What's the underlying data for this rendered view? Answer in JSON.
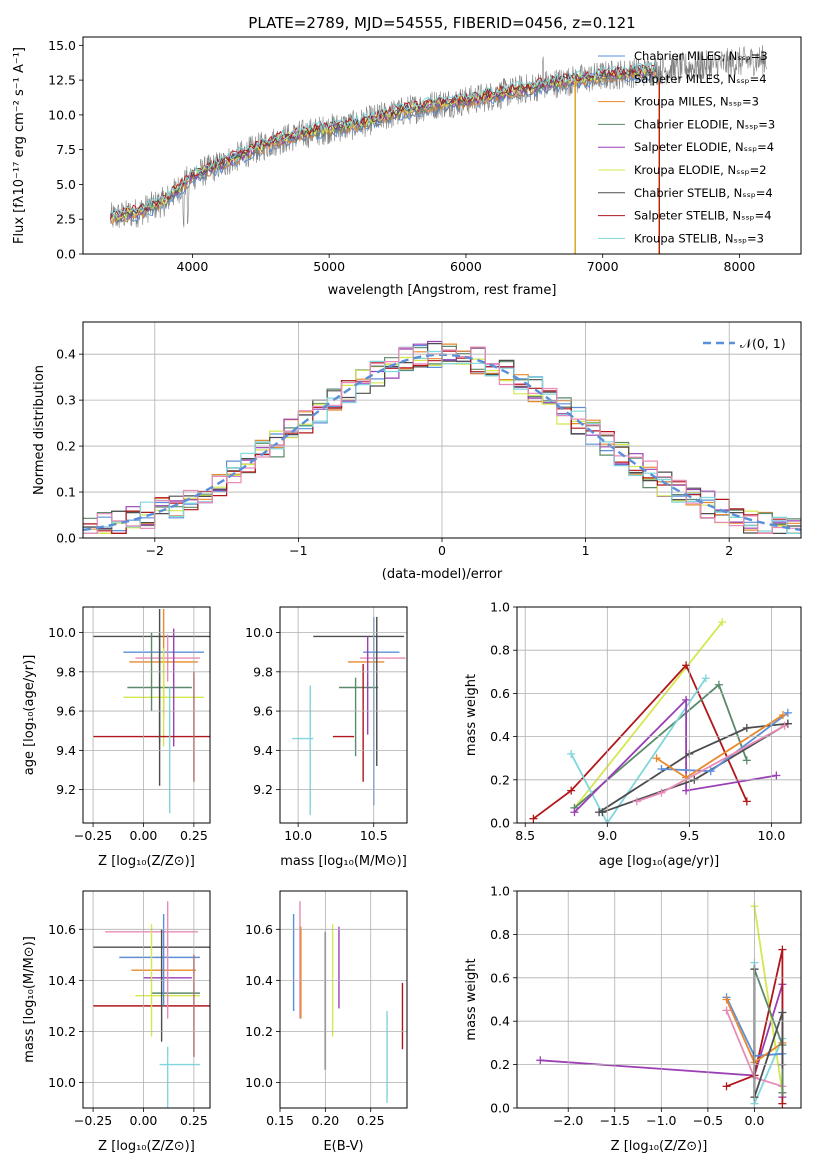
{
  "chart_data": [
    {
      "type": "line",
      "title": "PLATE=2789, MJD=54555, FIBERID=0456, z=0.121",
      "xlabel": "wavelength [Angstrom, rest frame]",
      "ylabel": "Flux [fλ10⁻¹⁷ erg cm⁻² s⁻¹ A⁻¹]",
      "xlim": [
        3200,
        8450
      ],
      "ylim": [
        0,
        15.6
      ],
      "xticks": [
        "4000",
        "5000",
        "6000",
        "7000",
        "8000"
      ],
      "yticks": [
        "0.0",
        "2.5",
        "5.0",
        "7.5",
        "10.0",
        "12.5",
        "15.0"
      ],
      "legend_placement": "top-right",
      "observed_color": "#808080",
      "continuum": {
        "x": [
          3400,
          3600,
          3800,
          4000,
          4200,
          4400,
          4600,
          4800,
          5000,
          5200,
          5400,
          5600,
          5800,
          6000,
          6200,
          6400,
          6600,
          6800,
          7000,
          7200
        ],
        "y": [
          2.6,
          3.0,
          3.8,
          5.6,
          6.4,
          7.3,
          8.1,
          8.6,
          9.0,
          9.3,
          9.9,
          10.4,
          10.8,
          11.0,
          11.4,
          11.8,
          12.2,
          12.5,
          12.8,
          13.0
        ]
      },
      "series": [
        {
          "name": "Chabrier MILES, Nₛₛₚ=3",
          "color": "#5b8fd9"
        },
        {
          "name": "Salpeter MILES, Nₛₛₚ=4",
          "color": "#7a7a7a"
        },
        {
          "name": "Kroupa MILES, Nₛₛₚ=3",
          "color": "#e8892c"
        },
        {
          "name": "Chabrier ELODIE, Nₛₛₚ=3",
          "color": "#5a8a6a"
        },
        {
          "name": "Salpeter ELODIE, Nₛₛₚ=4",
          "color": "#9b3fb5"
        },
        {
          "name": "Kroupa ELODIE, Nₛₛₚ=2",
          "color": "#d4e84e"
        },
        {
          "name": "Chabrier STELIB, Nₛₛₚ=4",
          "color": "#4d4d4d"
        },
        {
          "name": "Salpeter STELIB, Nₛₛₚ=4",
          "color": "#b0161a"
        },
        {
          "name": "Kroupa STELIB, Nₛₛₚ=3",
          "color": "#7fd6dc"
        }
      ]
    },
    {
      "type": "line",
      "xlabel": "(data-model)/error",
      "ylabel": "Normed distribution",
      "xlim": [
        -2.5,
        2.5
      ],
      "ylim": [
        0,
        0.47
      ],
      "xticks": [
        "−2",
        "−1",
        "0",
        "1",
        "2"
      ],
      "yticks": [
        "0.0",
        "0.1",
        "0.2",
        "0.3",
        "0.4"
      ],
      "grid": true,
      "legend_placement": "top-right",
      "legend_label": "𝒩(0, 1)",
      "gaussian_color": "#5b8fd9",
      "hist_colors": [
        "#5b8fd9",
        "#e8892c",
        "#5a8a6a",
        "#9b3fb5",
        "#d4e84e",
        "#4d4d4d",
        "#b0161a",
        "#7fd6dc",
        "#e88bb8"
      ]
    },
    {
      "type": "scatter",
      "xlabel": "Z [log₁₀(Z/Z⊙)]",
      "ylabel": "age  [log₁₀(age/yr)]",
      "xlim": [
        -0.3,
        0.33
      ],
      "ylim": [
        9.03,
        10.13
      ],
      "xticks": [
        "−0.25",
        "0.00",
        "0.25"
      ],
      "yticks": [
        "9.2",
        "9.4",
        "9.6",
        "9.8",
        "10.0"
      ],
      "grid": true,
      "points": [
        {
          "x": 0.08,
          "y": 9.98,
          "xerr": 0.33,
          "yerr": 0.0,
          "color": "#4d4d4d"
        },
        {
          "x": 0.1,
          "y": 9.9,
          "xerr": 0.2,
          "yerr": 0.0,
          "color": "#5b8fd9"
        },
        {
          "x": 0.12,
          "y": 9.87,
          "xerr": 0.16,
          "yerr": 0.12,
          "color": "#e88bb8"
        },
        {
          "x": 0.1,
          "y": 9.85,
          "xerr": 0.17,
          "yerr": 0.27,
          "color": "#e8892c"
        },
        {
          "x": 0.08,
          "y": 9.72,
          "xerr": 0.16,
          "yerr": 0.28,
          "color": "#5a8a6a"
        },
        {
          "x": 0.1,
          "y": 9.67,
          "xerr": 0.2,
          "yerr": 0.25,
          "color": "#d4e84e"
        },
        {
          "x": 0.15,
          "y": 9.72,
          "xerr": 0.0,
          "yerr": 0.3,
          "color": "#9b3fb5"
        },
        {
          "x": 0.1,
          "y": 9.47,
          "xerr": 0.35,
          "yerr": 0.0,
          "color": "#b0161a"
        },
        {
          "x": 0.25,
          "y": 9.52,
          "xerr": 0.0,
          "yerr": 0.28,
          "color": "#b0161a"
        },
        {
          "x": 0.08,
          "y": 9.67,
          "xerr": 0.0,
          "yerr": 0.45,
          "color": "#4d4d4d"
        },
        {
          "x": 0.13,
          "y": 9.4,
          "xerr": 0.0,
          "yerr": 0.32,
          "color": "#7fd6dc"
        },
        {
          "x": 0.04,
          "y": 9.8,
          "xerr": 0.0,
          "yerr": 0.2,
          "color": "#5a8a6a"
        }
      ]
    },
    {
      "type": "scatter",
      "xlabel": "mass [log₁₀(M/M⊙)]",
      "xlim": [
        9.88,
        10.72
      ],
      "ylim": [
        9.03,
        10.13
      ],
      "xticks": [
        "10.0",
        "10.5"
      ],
      "yticks": [
        "9.2",
        "9.4",
        "9.6",
        "9.8",
        "10.0"
      ],
      "grid": true,
      "points": [
        {
          "x": 10.4,
          "y": 9.98,
          "xerr": 0.3,
          "yerr": 0.0,
          "color": "#4d4d4d"
        },
        {
          "x": 10.55,
          "y": 9.9,
          "xerr": 0.12,
          "yerr": 0.0,
          "color": "#5b8fd9"
        },
        {
          "x": 10.56,
          "y": 9.87,
          "xerr": 0.15,
          "yerr": 0.0,
          "color": "#e88bb8"
        },
        {
          "x": 10.45,
          "y": 9.85,
          "xerr": 0.12,
          "yerr": 0.0,
          "color": "#e8892c"
        },
        {
          "x": 10.4,
          "y": 9.72,
          "xerr": 0.13,
          "yerr": 0.0,
          "color": "#5a8a6a"
        },
        {
          "x": 10.3,
          "y": 9.47,
          "xerr": 0.07,
          "yerr": 0.0,
          "color": "#b0161a"
        },
        {
          "x": 10.03,
          "y": 9.46,
          "xerr": 0.07,
          "yerr": 0.0,
          "color": "#7fd6dc"
        },
        {
          "x": 10.5,
          "y": 9.6,
          "xerr": 0.0,
          "yerr": 0.48,
          "color": "#5b8fd9"
        },
        {
          "x": 10.52,
          "y": 9.7,
          "xerr": 0.0,
          "yerr": 0.38,
          "color": "#4d4d4d"
        },
        {
          "x": 10.38,
          "y": 9.57,
          "xerr": 0.0,
          "yerr": 0.2,
          "color": "#5a8a6a"
        },
        {
          "x": 10.43,
          "y": 9.54,
          "xerr": 0.0,
          "yerr": 0.3,
          "color": "#b0161a"
        },
        {
          "x": 10.46,
          "y": 9.73,
          "xerr": 0.0,
          "yerr": 0.25,
          "color": "#9b3fb5"
        },
        {
          "x": 10.08,
          "y": 9.4,
          "xerr": 0.0,
          "yerr": 0.33,
          "color": "#7fd6dc"
        }
      ]
    },
    {
      "type": "line",
      "xlabel": "age  [log₁₀(age/yr)]",
      "ylabel": "mass weight",
      "xlim": [
        8.45,
        10.18
      ],
      "ylim": [
        0,
        1.0
      ],
      "xticks": [
        "8.5",
        "9.0",
        "9.5",
        "10.0"
      ],
      "yticks": [
        "0.0",
        "0.2",
        "0.4",
        "0.6",
        "0.8",
        "1.0"
      ],
      "grid": true,
      "series": [
        {
          "color": "#d4e84e",
          "x": [
            8.8,
            9.7
          ],
          "y": [
            0.07,
            0.93
          ]
        },
        {
          "color": "#b0161a",
          "x": [
            8.55,
            8.78,
            9.48,
            9.85
          ],
          "y": [
            0.02,
            0.15,
            0.73,
            0.1
          ]
        },
        {
          "color": "#5a8a6a",
          "x": [
            8.8,
            9.68,
            9.85
          ],
          "y": [
            0.07,
            0.64,
            0.29
          ]
        },
        {
          "color": "#7fd6dc",
          "x": [
            8.78,
            9.0,
            9.6
          ],
          "y": [
            0.32,
            0.0,
            0.67
          ]
        },
        {
          "color": "#9b3fb5",
          "x": [
            8.8,
            9.48,
            9.48,
            10.03
          ],
          "y": [
            0.05,
            0.57,
            0.15,
            0.22
          ]
        },
        {
          "color": "#4d4d4d",
          "x": [
            8.95,
            9.5,
            9.85,
            10.1
          ],
          "y": [
            0.05,
            0.32,
            0.44,
            0.46
          ]
        },
        {
          "color": "#4d4d4d",
          "x": [
            8.97,
            9.53,
            10.1
          ],
          "y": [
            0.05,
            0.2,
            0.46
          ]
        },
        {
          "color": "#5b8fd9",
          "x": [
            9.33,
            9.63,
            10.1
          ],
          "y": [
            0.25,
            0.24,
            0.51
          ]
        },
        {
          "color": "#e8892c",
          "x": [
            9.3,
            9.48,
            10.07
          ],
          "y": [
            0.3,
            0.21,
            0.5
          ]
        },
        {
          "color": "#e88bb8",
          "x": [
            9.18,
            9.33,
            10.08
          ],
          "y": [
            0.1,
            0.14,
            0.45
          ]
        }
      ]
    },
    {
      "type": "scatter",
      "xlabel": "Z [log₁₀(Z/Z⊙)]",
      "ylabel": "mass [log₁₀(M/M⊙)]",
      "xlim": [
        -0.3,
        0.33
      ],
      "ylim": [
        9.9,
        10.75
      ],
      "xticks": [
        "−0.25",
        "0.00",
        "0.25"
      ],
      "yticks": [
        "10.0",
        "10.2",
        "10.4",
        "10.6"
      ],
      "grid": true,
      "points": [
        {
          "x": 0.04,
          "y": 10.59,
          "xerr": 0.23,
          "yerr": 0.0,
          "color": "#e88bb8"
        },
        {
          "x": 0.06,
          "y": 10.53,
          "xerr": 0.31,
          "yerr": 0.0,
          "color": "#4d4d4d"
        },
        {
          "x": 0.08,
          "y": 10.49,
          "xerr": 0.2,
          "yerr": 0.0,
          "color": "#5b8fd9"
        },
        {
          "x": 0.1,
          "y": 10.44,
          "xerr": 0.16,
          "yerr": 0.0,
          "color": "#e8892c"
        },
        {
          "x": 0.12,
          "y": 10.41,
          "xerr": 0.12,
          "yerr": 0.0,
          "color": "#9b3fb5"
        },
        {
          "x": 0.16,
          "y": 10.35,
          "xerr": 0.12,
          "yerr": 0.0,
          "color": "#5a8a6a"
        },
        {
          "x": 0.12,
          "y": 10.34,
          "xerr": 0.16,
          "yerr": 0.0,
          "color": "#d4e84e"
        },
        {
          "x": 0.05,
          "y": 10.3,
          "xerr": 0.3,
          "yerr": 0.0,
          "color": "#b0161a"
        },
        {
          "x": 0.18,
          "y": 10.07,
          "xerr": 0.1,
          "yerr": 0.0,
          "color": "#7fd6dc"
        },
        {
          "x": 0.1,
          "y": 10.48,
          "xerr": 0.0,
          "yerr": 0.18,
          "color": "#5b8fd9"
        },
        {
          "x": 0.12,
          "y": 10.48,
          "xerr": 0.0,
          "yerr": 0.23,
          "color": "#e88bb8"
        },
        {
          "x": 0.09,
          "y": 10.38,
          "xerr": 0.0,
          "yerr": 0.22,
          "color": "#4d4d4d"
        },
        {
          "x": 0.04,
          "y": 10.4,
          "xerr": 0.0,
          "yerr": 0.22,
          "color": "#d4e84e"
        },
        {
          "x": 0.25,
          "y": 10.3,
          "xerr": 0.0,
          "yerr": 0.2,
          "color": "#b0161a"
        },
        {
          "x": 0.12,
          "y": 10.0,
          "xerr": 0.0,
          "yerr": 0.14,
          "color": "#7fd6dc"
        }
      ]
    },
    {
      "type": "scatter",
      "xlabel": "E(B-V)",
      "xlim": [
        0.15,
        0.29
      ],
      "ylim": [
        9.9,
        10.75
      ],
      "xticks": [
        "0.15",
        "0.20",
        "0.25"
      ],
      "yticks": [
        "10.0",
        "10.2",
        "10.4",
        "10.6"
      ],
      "grid": true,
      "points": [
        {
          "x": 0.165,
          "y": 10.47,
          "xerr": 0.0,
          "yerr": 0.19,
          "color": "#5b8fd9"
        },
        {
          "x": 0.172,
          "y": 10.48,
          "xerr": 0.0,
          "yerr": 0.23,
          "color": "#e88bb8"
        },
        {
          "x": 0.173,
          "y": 10.43,
          "xerr": 0.0,
          "yerr": 0.18,
          "color": "#e8892c"
        },
        {
          "x": 0.2,
          "y": 10.32,
          "xerr": 0.0,
          "yerr": 0.27,
          "color": "#4d4d4d"
        },
        {
          "x": 0.208,
          "y": 10.4,
          "xerr": 0.0,
          "yerr": 0.22,
          "color": "#d4e84e"
        },
        {
          "x": 0.215,
          "y": 10.45,
          "xerr": 0.0,
          "yerr": 0.16,
          "color": "#9b3fb5"
        },
        {
          "x": 0.268,
          "y": 10.1,
          "xerr": 0.0,
          "yerr": 0.18,
          "color": "#7fd6dc"
        },
        {
          "x": 0.285,
          "y": 10.26,
          "xerr": 0.0,
          "yerr": 0.13,
          "color": "#b0161a"
        }
      ]
    },
    {
      "type": "line",
      "xlabel": "Z [log₁₀(Z/Z⊙)]",
      "ylabel": "mass weight",
      "xlim": [
        -2.55,
        0.5
      ],
      "ylim": [
        0,
        1.0
      ],
      "xticks": [
        "−2.0",
        "−1.5",
        "−1.0",
        "−0.5",
        "0.0"
      ],
      "yticks": [
        "0.0",
        "0.2",
        "0.4",
        "0.6",
        "0.8",
        "1.0"
      ],
      "grid": true,
      "series": [
        {
          "color": "#9b3fb5",
          "x": [
            -2.3,
            0.0,
            0.3,
            0.3
          ],
          "y": [
            0.22,
            0.15,
            0.57,
            0.05
          ]
        },
        {
          "color": "#d4e84e",
          "x": [
            0.0,
            0.3
          ],
          "y": [
            0.93,
            0.07
          ]
        },
        {
          "color": "#b0161a",
          "x": [
            -0.3,
            0.0,
            0.3,
            0.3
          ],
          "y": [
            0.1,
            0.15,
            0.73,
            0.02
          ]
        },
        {
          "color": "#7fd6dc",
          "x": [
            0.0,
            0.0,
            0.3
          ],
          "y": [
            0.67,
            0.02,
            0.32
          ]
        },
        {
          "color": "#5b8fd9",
          "x": [
            -0.3,
            0.0,
            0.3
          ],
          "y": [
            0.51,
            0.24,
            0.25
          ]
        },
        {
          "color": "#e8892c",
          "x": [
            -0.3,
            0.0,
            0.3
          ],
          "y": [
            0.5,
            0.21,
            0.3
          ]
        },
        {
          "color": "#e88bb8",
          "x": [
            -0.3,
            0.0,
            0.3
          ],
          "y": [
            0.45,
            0.14,
            0.1
          ]
        },
        {
          "color": "#5a8a6a",
          "x": [
            0.0,
            0.3,
            0.3
          ],
          "y": [
            0.64,
            0.29,
            0.07
          ]
        },
        {
          "color": "#4d4d4d",
          "x": [
            0.0,
            0.0,
            0.3,
            0.3
          ],
          "y": [
            0.64,
            0.05,
            0.44,
            0.2
          ]
        }
      ]
    }
  ]
}
